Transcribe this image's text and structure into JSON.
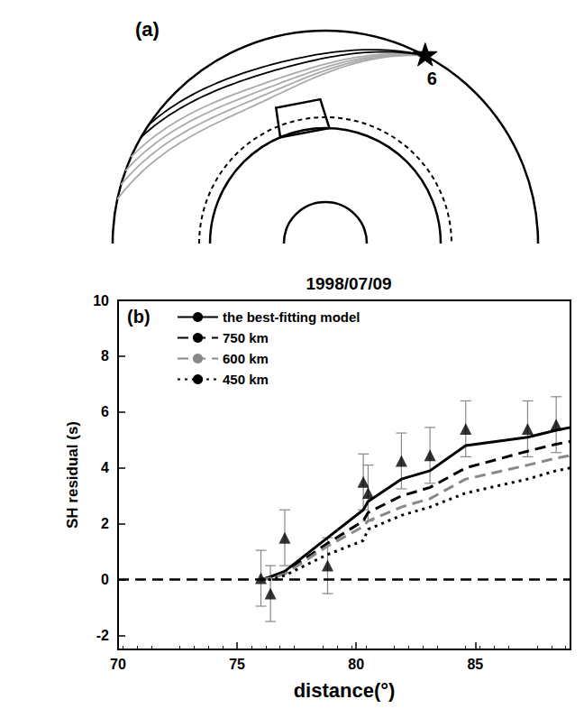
{
  "panel_a": {
    "label": "(a)",
    "event_label": "6"
  },
  "chart_data": {
    "type": "line",
    "panel_label": "(b)",
    "title": "1998/07/09",
    "x_label": "distance(°)",
    "y_label": "SH residual (s)",
    "xlim": [
      70,
      89
    ],
    "xticks": [
      70,
      75,
      80,
      85
    ],
    "ylim": [
      -2.5,
      10
    ],
    "yticks": [
      -2,
      0,
      2,
      4,
      6,
      8,
      10
    ],
    "grid": false,
    "legend": "upper left",
    "reference_line": {
      "y": 0,
      "color": "#000000",
      "line_style": "dashed"
    },
    "series": [
      {
        "name": "the best-fitting model",
        "color": "#000000",
        "line_style": "solid",
        "x": [
          76,
          76.4,
          77,
          78.8,
          80.3,
          80.5,
          81.9,
          83.1,
          84.6,
          87.2,
          88.4,
          89
        ],
        "values": [
          0,
          0.1,
          0.3,
          1.5,
          2.5,
          2.8,
          3.6,
          3.9,
          4.8,
          5.1,
          5.35,
          5.45
        ]
      },
      {
        "name": "750 km",
        "color": "#000000",
        "line_style": "dashed",
        "x": [
          76,
          76.4,
          77,
          78.8,
          80.3,
          80.5,
          81.9,
          83.1,
          84.6,
          87.2,
          88.4,
          89
        ],
        "values": [
          0,
          0.05,
          0.25,
          1.3,
          2.1,
          2.4,
          3.0,
          3.3,
          4.0,
          4.6,
          4.85,
          4.95
        ]
      },
      {
        "name": "600 km",
        "color": "#888888",
        "line_style": "dashed",
        "x": [
          76,
          76.4,
          77,
          78.8,
          80.3,
          80.5,
          81.9,
          83.1,
          84.6,
          87.2,
          88.4,
          89
        ],
        "values": [
          0,
          0.05,
          0.2,
          1.2,
          1.9,
          2.1,
          2.6,
          2.9,
          3.6,
          4.1,
          4.35,
          4.45
        ]
      },
      {
        "name": "450 km",
        "color": "#000000",
        "line_style": "dotted",
        "x": [
          76,
          76.4,
          77,
          78.8,
          80.3,
          80.5,
          81.9,
          83.1,
          84.6,
          87.2,
          88.4,
          89
        ],
        "values": [
          0,
          0,
          0.15,
          0.9,
          1.4,
          1.8,
          2.3,
          2.6,
          3.1,
          3.6,
          3.9,
          4.0
        ]
      }
    ],
    "observations": {
      "type": "scatter",
      "marker": "triangle",
      "color": "#000000",
      "error_color": "#888888",
      "x": [
        76.0,
        76.4,
        77.0,
        78.8,
        80.3,
        80.5,
        81.9,
        83.1,
        84.6,
        87.2,
        88.4
      ],
      "values": [
        0.05,
        -0.5,
        1.5,
        0.5,
        3.5,
        3.1,
        4.25,
        4.45,
        5.4,
        5.4,
        5.55
      ],
      "errors": [
        1,
        1,
        1,
        1,
        1,
        1,
        1,
        1,
        1,
        1,
        1
      ]
    }
  }
}
